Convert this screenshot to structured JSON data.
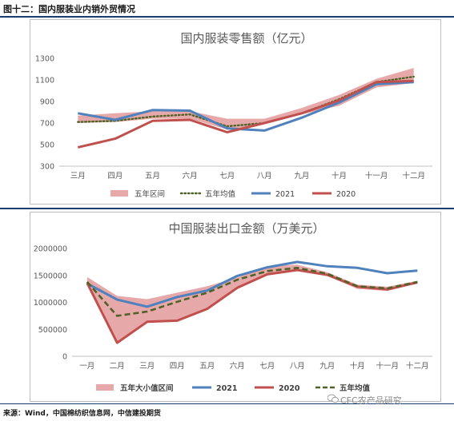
{
  "figure_title": "图十二：国内服装业内销外贸情况",
  "source": "来源：Wind，中国棉纺织信息网，中信建投期货",
  "watermark": "CFC农产品研究",
  "chart_data": [
    {
      "type": "line",
      "title": "国内服装零售额（亿元）",
      "categories": [
        "三月",
        "四月",
        "五月",
        "六月",
        "七月",
        "八月",
        "九月",
        "十月",
        "十一月",
        "十二月"
      ],
      "ylim": [
        300,
        1300
      ],
      "yticks": [
        300,
        500,
        700,
        900,
        1100,
        1300
      ],
      "band": {
        "name": "五年区间",
        "color": "#e6a8a8",
        "low": [
          700,
          710,
          740,
          740,
          640,
          690,
          780,
          860,
          1030,
          1070
        ],
        "high": [
          770,
          790,
          810,
          810,
          740,
          740,
          840,
          960,
          1110,
          1210
        ]
      },
      "series": [
        {
          "name": "五年均值",
          "style": "dotted",
          "color": "#4f6228",
          "values": [
            710,
            720,
            760,
            780,
            670,
            700,
            790,
            920,
            1080,
            1130
          ]
        },
        {
          "name": "2021",
          "style": "solid",
          "color": "#4f81bd",
          "values": [
            790,
            730,
            820,
            815,
            650,
            630,
            750,
            890,
            1060,
            1080
          ]
        },
        {
          "name": "2020",
          "style": "solid",
          "color": "#c0504d",
          "values": [
            475,
            555,
            720,
            730,
            615,
            700,
            790,
            910,
            1080,
            1090
          ]
        }
      ],
      "legend": [
        "五年区间",
        "五年均值",
        "2021",
        "2020"
      ]
    },
    {
      "type": "line",
      "title": "中国服装出口金额（万美元）",
      "categories": [
        "一月",
        "二月",
        "三月",
        "四月",
        "五月",
        "六月",
        "七月",
        "八月",
        "九月",
        "十月",
        "十一月",
        "十二月"
      ],
      "ylim": [
        0,
        2000000
      ],
      "yticks": [
        0,
        500000,
        1000000,
        1500000,
        2000000
      ],
      "ytick_labels": [
        "0",
        "500000",
        "1000000",
        "1500000",
        "2000000"
      ],
      "band": {
        "name": "五年大小值区间",
        "color": "#e6a8a8",
        "low": [
          1320000,
          250000,
          640000,
          660000,
          880000,
          1270000,
          1520000,
          1590000,
          1490000,
          1250000,
          1210000,
          1350000
        ],
        "high": [
          1470000,
          1120000,
          1060000,
          1180000,
          1300000,
          1460000,
          1670000,
          1700000,
          1560000,
          1330000,
          1290000,
          1400000
        ]
      },
      "series": [
        {
          "name": "2021",
          "style": "solid",
          "color": "#4f81bd",
          "values": [
            1350000,
            1050000,
            920000,
            1100000,
            1220000,
            1490000,
            1650000,
            1750000,
            1670000,
            1640000,
            1540000,
            1590000
          ]
        },
        {
          "name": "2020",
          "style": "solid",
          "color": "#c0504d",
          "values": [
            1360000,
            250000,
            640000,
            660000,
            880000,
            1270000,
            1520000,
            1600000,
            1510000,
            1290000,
            1240000,
            1370000
          ]
        },
        {
          "name": "五年均值",
          "style": "dashed",
          "color": "#4f6228",
          "values": [
            1380000,
            750000,
            830000,
            1010000,
            1180000,
            1420000,
            1580000,
            1640000,
            1530000,
            1300000,
            1260000,
            1380000
          ]
        }
      ],
      "legend": [
        "五年大小值区间",
        "2021",
        "2020",
        "五年均值"
      ]
    }
  ]
}
